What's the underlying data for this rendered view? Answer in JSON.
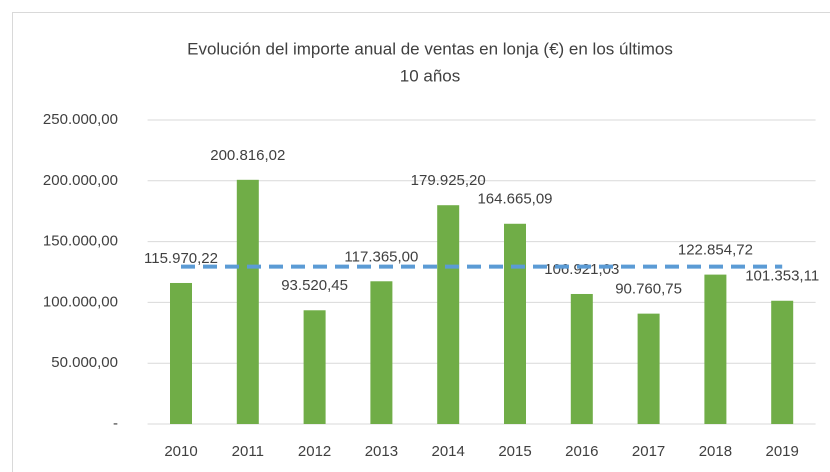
{
  "chart_data": {
    "type": "bar",
    "title": [
      "Evolución del importe anual de ventas en lonja (€) en los últimos",
      "10 años"
    ],
    "categories": [
      "2010",
      "2011",
      "2012",
      "2013",
      "2014",
      "2015",
      "2016",
      "2017",
      "2018",
      "2019"
    ],
    "series": [
      {
        "type": "bar",
        "color": "#70ad47",
        "values": [
          115970.22,
          200816.02,
          93520.45,
          117365.0,
          179925.2,
          164665.09,
          106921.03,
          90760.75,
          122854.72,
          101353.11
        ],
        "value_labels": [
          "115.970,22",
          "200.816,02",
          "93.520,45",
          "117.365,00",
          "179.925,20",
          "164.665,09",
          "106.921,03",
          "90.760,75",
          "122.854,72",
          "101.353,11"
        ]
      },
      {
        "type": "line",
        "color": "#5b9bd5",
        "dashed": true,
        "values": [
          129415.16,
          129415.16,
          129415.16,
          129415.16,
          129415.16,
          129415.16,
          129415.16,
          129415.16,
          129415.16,
          129415.16
        ]
      }
    ],
    "ylim": [
      0,
      250000
    ],
    "yticks": [
      {
        "value": 0,
        "label": "-"
      },
      {
        "value": 50000,
        "label": "50.000,00"
      },
      {
        "value": 100000,
        "label": "100.000,00"
      },
      {
        "value": 150000,
        "label": "150.000,00"
      },
      {
        "value": 200000,
        "label": "200.000,00"
      },
      {
        "value": 250000,
        "label": "250.000,00"
      }
    ],
    "grid": true
  }
}
